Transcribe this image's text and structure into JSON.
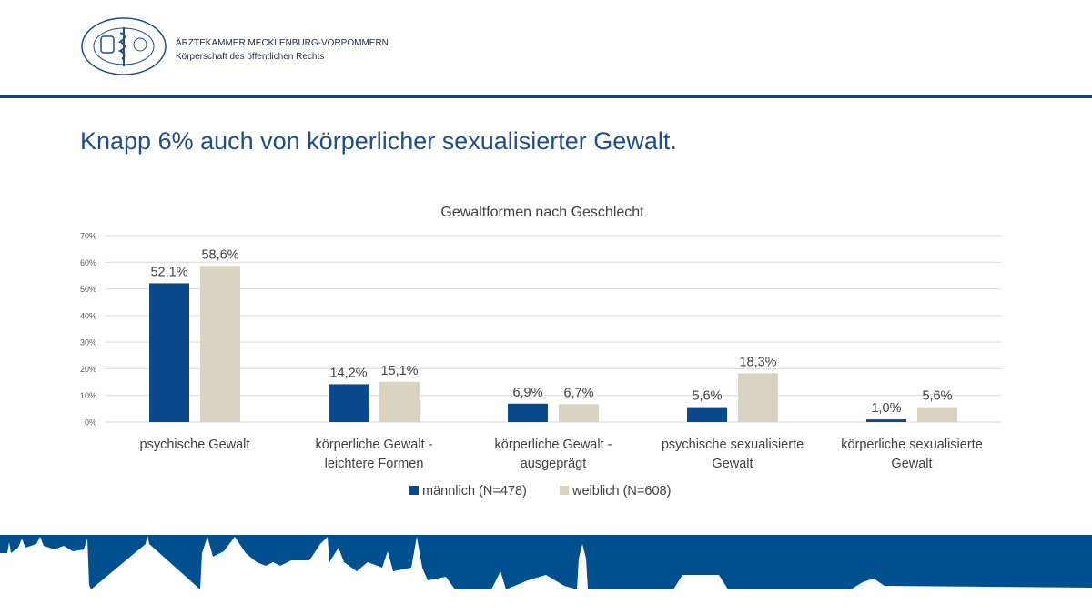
{
  "header": {
    "logo_text_top": "ÄRZTEKAMMER",
    "logo_text_bottom": "MECKLENBURG-VORPOMMERN",
    "org_name": "ÄRZTEKAMMER MECKLENBURG-VORPOMMERN",
    "org_subtitle": "Körperschaft des öffentlichen Rechts"
  },
  "slide_title": "Knapp 6% auch von körperlicher sexualisierter Gewalt.",
  "colors": {
    "brand": "#1f4e8c",
    "male": "#0a4a8c",
    "female": "#d9d3c1",
    "banner": "#00508f"
  },
  "chart_data": {
    "type": "bar",
    "title": "Gewaltformen  nach Geschlecht",
    "categories": [
      [
        "psychische Gewalt"
      ],
      [
        "körperliche Gewalt -",
        "leichtere Formen"
      ],
      [
        "körperliche Gewalt -",
        "ausgeprägt"
      ],
      [
        "psychische sexualisierte",
        "Gewalt"
      ],
      [
        "körperliche sexualisierte",
        "Gewalt"
      ]
    ],
    "series": [
      {
        "name": "männlich (N=478)",
        "values": [
          52.1,
          14.2,
          6.9,
          5.6,
          1.0
        ],
        "labels": [
          "52,1%",
          "14,2%",
          "6,9%",
          "5,6%",
          "1,0%"
        ]
      },
      {
        "name": "weiblich (N=608)",
        "values": [
          58.6,
          15.1,
          6.7,
          18.3,
          5.6
        ],
        "labels": [
          "58,6%",
          "15,1%",
          "6,7%",
          "18,3%",
          "5,6%"
        ]
      }
    ],
    "yticks": [
      "0%",
      "10%",
      "20%",
      "30%",
      "40%",
      "50%",
      "60%",
      "70%"
    ],
    "ylim": [
      0,
      70
    ],
    "grid": true,
    "legend": "bottom"
  }
}
